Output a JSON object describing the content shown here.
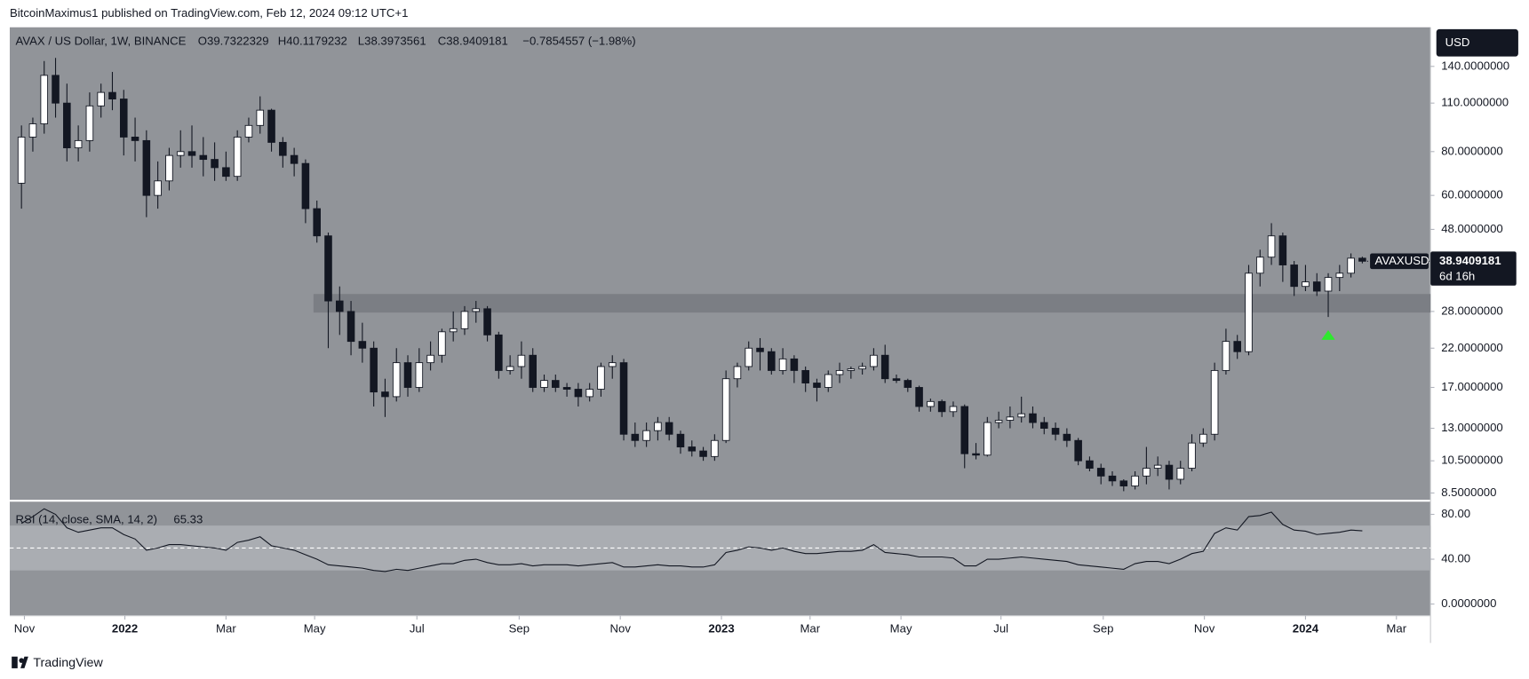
{
  "attribution": "BitcoinMaximus1 published on TradingView.com, Feb 12, 2024 09:12 UTC+1",
  "footer": "TradingView",
  "chart_data": [
    {
      "type": "candlestick",
      "legend": {
        "symbol": "AVAX / US Dollar, 1W, BINANCE",
        "ohlc": [
          "O39.7322329",
          "H40.1179232",
          "L38.3973561",
          "C38.9409181"
        ],
        "change": "−0.7854557 (−1.98%)"
      },
      "currency": "USD",
      "symbol_tag": "AVAXUSD",
      "countdown": "6d 16h",
      "log_scale": true,
      "grid": false,
      "up_color": "#ffffff",
      "down_color": "#131722",
      "wick_color": "#131722",
      "xlim": [
        -1.03,
        124.0
      ],
      "xticks": [
        {
          "value": 0.26,
          "label": "Nov"
        },
        {
          "value": 9.1,
          "label": "2022"
        },
        {
          "value": 18.0,
          "label": "Mar"
        },
        {
          "value": 25.8,
          "label": "May"
        },
        {
          "value": 34.8,
          "label": "Jul"
        },
        {
          "value": 43.8,
          "label": "Sep"
        },
        {
          "value": 52.7,
          "label": "Nov"
        },
        {
          "value": 61.6,
          "label": "2023"
        },
        {
          "value": 69.4,
          "label": "Mar"
        },
        {
          "value": 77.4,
          "label": "May"
        },
        {
          "value": 86.2,
          "label": "Jul"
        },
        {
          "value": 95.2,
          "label": "Sep"
        },
        {
          "value": 104.1,
          "label": "Nov"
        },
        {
          "value": 113.0,
          "label": "2024"
        },
        {
          "value": 121.0,
          "label": "Mar"
        }
      ],
      "ylim": [
        8.13,
        181
      ],
      "yticks": [
        {
          "value": 140,
          "label": "140.0000000"
        },
        {
          "value": 110,
          "label": "110.0000000"
        },
        {
          "value": 80,
          "label": "80.0000000"
        },
        {
          "value": 60,
          "label": "60.0000000"
        },
        {
          "value": 48,
          "label": "48.0000000"
        },
        {
          "value": 28,
          "label": "28.0000000"
        },
        {
          "value": 22,
          "label": "22.0000000"
        },
        {
          "value": 17,
          "label": "17.0000000"
        },
        {
          "value": 13,
          "label": "13.0000000"
        },
        {
          "value": 10.5,
          "label": "10.5000000"
        },
        {
          "value": 8.5,
          "label": "8.5000000"
        }
      ],
      "support_zone": {
        "from": 25.7,
        "low": 27.8,
        "high": 31.4,
        "color": "#7b7e84"
      },
      "marker": {
        "index": 115,
        "price": 24,
        "color": "#2ee82e"
      },
      "open": [
        65,
        88,
        96,
        132,
        110,
        82,
        86,
        108,
        118,
        113,
        88,
        86,
        60,
        66,
        78,
        80,
        78,
        76,
        72,
        68,
        88,
        95,
        105,
        85,
        78,
        74,
        55,
        46,
        30,
        28,
        23,
        22,
        16.5,
        16,
        20,
        17,
        20,
        21,
        24.5,
        25,
        28,
        28.5,
        24,
        19,
        19.5,
        21,
        17,
        17.8,
        17,
        16.8,
        16,
        16.8,
        19.5,
        20,
        12.5,
        12,
        12.8,
        13.5,
        12.5,
        11.5,
        11.2,
        10.8,
        12,
        18,
        19.5,
        22,
        21.5,
        19,
        20.5,
        19,
        17.5,
        17,
        18.5,
        19,
        19.2,
        19.5,
        21,
        18,
        17.8,
        17,
        15,
        15.5,
        14.5,
        15,
        11,
        10.9,
        13.5,
        13.7,
        14,
        14.3,
        13.5,
        13,
        12.5,
        12,
        10.5,
        10,
        9.5,
        9.2,
        8.9,
        9.5,
        10,
        10.2,
        9.3,
        10,
        11.8,
        12.5,
        19,
        23,
        21.5,
        36,
        40,
        46,
        38,
        33,
        34,
        32,
        35,
        36,
        39.7322329
      ],
      "high": [
        95,
        100,
        145,
        148,
        125,
        95,
        118,
        125,
        135,
        120,
        100,
        92,
        75,
        82,
        92,
        95,
        88,
        85,
        80,
        92,
        100,
        115,
        106,
        88,
        82,
        76,
        58,
        47,
        33,
        30,
        26,
        23,
        18,
        22,
        21,
        22,
        23,
        25,
        28,
        29,
        30,
        29,
        24.5,
        21,
        23,
        22,
        18.5,
        18.5,
        17.5,
        17.5,
        17.5,
        20,
        21,
        20.5,
        13.5,
        13.5,
        14,
        14,
        12.8,
        12,
        11.5,
        12.5,
        19,
        20,
        23,
        23.5,
        22,
        22,
        21,
        19.5,
        18,
        19,
        20,
        19.5,
        20,
        22,
        22.5,
        18.5,
        18,
        17.2,
        15.8,
        15.7,
        15.5,
        15.2,
        11.8,
        14,
        14.5,
        15,
        16,
        15,
        14,
        13.5,
        13,
        12.2,
        10.8,
        10.3,
        9.8,
        9.3,
        9.8,
        11.5,
        10.8,
        10.5,
        10.5,
        12.5,
        13,
        20,
        25,
        24,
        38,
        42,
        50,
        47,
        39,
        38,
        36,
        36,
        38,
        41,
        40.1179232
      ],
      "low": [
        55,
        80,
        90,
        100,
        75,
        75,
        80,
        100,
        105,
        78,
        75,
        52,
        55,
        62,
        72,
        72,
        68,
        66,
        66,
        66,
        85,
        90,
        80,
        72,
        68,
        50,
        44,
        22,
        24,
        21,
        20,
        15,
        14,
        15.5,
        16,
        16.5,
        19,
        20,
        23,
        24,
        26,
        23,
        18,
        18.5,
        18,
        16.5,
        16.5,
        16.5,
        16,
        15,
        15.5,
        16,
        18,
        12,
        11.5,
        11.5,
        12,
        12,
        11,
        10.8,
        10.5,
        10.5,
        11.8,
        17,
        19,
        19,
        18.5,
        18.5,
        17.5,
        16.5,
        15.5,
        16.5,
        17.5,
        18,
        18.5,
        19,
        17.5,
        17.5,
        16.5,
        14.5,
        14.5,
        14,
        14,
        10,
        10.6,
        10.8,
        13,
        13,
        13.5,
        13,
        12.5,
        12,
        11.5,
        10.2,
        9.8,
        9,
        8.9,
        8.6,
        8.7,
        9,
        9.5,
        8.7,
        9,
        9.8,
        11.5,
        12,
        18.5,
        20.5,
        21,
        33,
        38,
        34,
        31,
        32,
        31,
        27,
        32,
        35,
        38.3973561
      ],
      "close": [
        88,
        96,
        132,
        110,
        82,
        86,
        108,
        118,
        113,
        88,
        86,
        60,
        66,
        78,
        80,
        78,
        76,
        72,
        68,
        88,
        95,
        105,
        85,
        78,
        74,
        55,
        46,
        30,
        28,
        23,
        22,
        16.5,
        16,
        20,
        17,
        20,
        21,
        24.5,
        25,
        28,
        28.5,
        24,
        19,
        19.5,
        21,
        17,
        17.8,
        17,
        16.8,
        16,
        16.8,
        19.5,
        20,
        12.5,
        12,
        12.8,
        13.5,
        12.5,
        11.5,
        11.2,
        10.8,
        12,
        18,
        19.5,
        22,
        21.5,
        19,
        20.5,
        19,
        17.5,
        17,
        18.5,
        19,
        19.2,
        19.5,
        21,
        18,
        17.8,
        17,
        15,
        15.5,
        14.5,
        15,
        11,
        10.9,
        13.5,
        13.7,
        14,
        14.3,
        13.5,
        13,
        12.5,
        12,
        10.5,
        10,
        9.5,
        9.2,
        8.9,
        9.5,
        10,
        10.2,
        9.3,
        10,
        11.8,
        12.5,
        19,
        23,
        21.5,
        36,
        40,
        46,
        38,
        33,
        34,
        32,
        35,
        36,
        39.7322329,
        38.9409181
      ]
    },
    {
      "type": "line",
      "title": "RSI (14, close, SMA, 14, 2)",
      "color": "#131722",
      "band": [
        30,
        70
      ],
      "band_color": "#aaadb2",
      "mid": 50,
      "ylim": [
        -10.4,
        91.3
      ],
      "yticks": [
        {
          "value": 80,
          "label": "80.00"
        },
        {
          "value": 40,
          "label": "40.00"
        },
        {
          "value": 0,
          "label": "0.0000000"
        }
      ],
      "values": [
        72,
        78,
        85,
        80,
        68,
        64,
        66,
        68,
        68,
        62,
        58,
        48,
        50,
        53,
        53,
        52,
        51,
        50,
        48,
        55,
        57,
        60,
        52,
        50,
        48,
        44,
        40,
        35,
        34,
        33,
        32,
        30,
        29,
        31,
        30,
        32,
        34,
        36,
        36,
        39,
        40,
        37,
        35,
        35,
        36,
        34,
        35,
        35,
        35,
        34,
        35,
        36,
        37,
        33,
        33,
        34,
        35,
        34,
        34,
        33,
        33,
        35,
        46,
        48,
        51,
        50,
        48,
        50,
        47,
        45,
        45,
        46,
        47,
        47,
        48,
        53,
        46,
        45,
        44,
        42,
        42,
        42,
        41,
        34,
        34,
        40,
        40,
        41,
        42,
        41,
        40,
        39,
        38,
        35,
        34,
        33,
        32,
        31,
        36,
        38,
        38,
        36,
        40,
        45,
        47,
        63,
        68,
        66,
        78,
        79,
        82,
        71,
        66,
        65,
        62,
        63,
        64,
        66,
        65.33
      ]
    }
  ]
}
